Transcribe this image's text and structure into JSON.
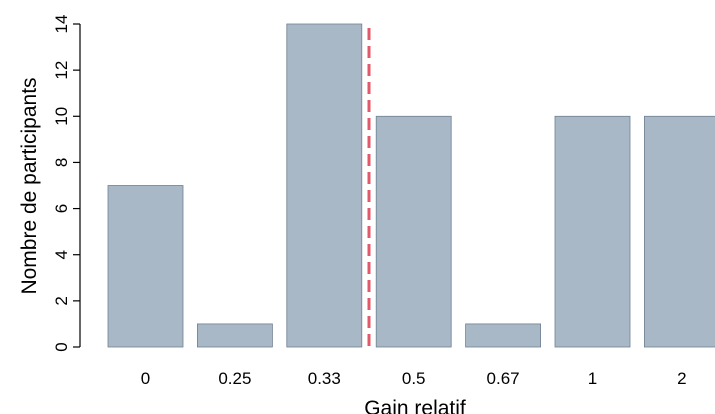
{
  "chart_data": {
    "type": "bar",
    "categories": [
      "0",
      "0.25",
      "0.33",
      "0.5",
      "0.67",
      "1",
      "2"
    ],
    "values": [
      7,
      1,
      14,
      10,
      1,
      10,
      10
    ],
    "xlabel": "Gain relatif",
    "ylabel": "Nombre de participants",
    "ylim": [
      0,
      14
    ],
    "yticks": [
      0,
      2,
      4,
      6,
      8,
      10,
      12,
      14
    ],
    "reference_line": {
      "style": "dashed",
      "position_between": [
        "0.33",
        "0.5"
      ],
      "color": "#e05a6a"
    },
    "bar_color": "#a9b8c6",
    "bar_edge_color": "#6f8192",
    "grid": false,
    "legend": "none"
  }
}
